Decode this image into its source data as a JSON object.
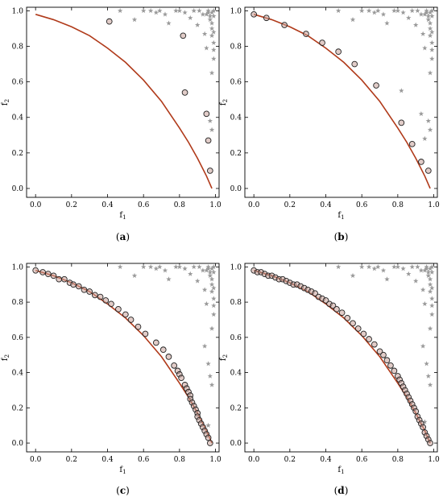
{
  "colors": {
    "front_curve": "#b03a1a",
    "solution_fill": "#c9a39a",
    "solution_stroke": "#222222",
    "population": "#9a9a9a",
    "axes": "#000000"
  },
  "chart_data": [
    {
      "type": "scatter",
      "panel_label": "(a)",
      "xlabel": "f1",
      "ylabel": "f2",
      "xlim": [
        -0.05,
        1.02
      ],
      "ylim": [
        -0.05,
        1.02
      ],
      "xticks": [
        "0.0",
        "0.2",
        "0.4",
        "0.6",
        "0.8",
        "1.0"
      ],
      "yticks": [
        "0.0",
        "0.2",
        "0.4",
        "0.6",
        "0.8",
        "1.0"
      ],
      "grid": false,
      "front_points": [
        [
          0.0,
          0.98
        ],
        [
          0.1,
          0.95
        ],
        [
          0.2,
          0.91
        ],
        [
          0.3,
          0.86
        ],
        [
          0.4,
          0.79
        ],
        [
          0.5,
          0.71
        ],
        [
          0.6,
          0.61
        ],
        [
          0.7,
          0.49
        ],
        [
          0.8,
          0.34
        ],
        [
          0.85,
          0.26
        ],
        [
          0.9,
          0.17
        ],
        [
          0.95,
          0.07
        ],
        [
          0.98,
          0.0
        ]
      ],
      "solutions": [
        [
          0.41,
          0.94
        ],
        [
          0.82,
          0.86
        ],
        [
          0.83,
          0.54
        ],
        [
          0.95,
          0.42
        ],
        [
          0.96,
          0.27
        ],
        [
          0.97,
          0.1
        ]
      ],
      "population": [
        [
          0.47,
          1.0
        ],
        [
          0.55,
          0.95
        ],
        [
          0.6,
          1.0
        ],
        [
          0.64,
          1.0
        ],
        [
          0.67,
          0.99
        ],
        [
          0.69,
          1.0
        ],
        [
          0.72,
          0.98
        ],
        [
          0.74,
          0.93
        ],
        [
          0.78,
          1.0
        ],
        [
          0.8,
          1.0
        ],
        [
          0.83,
          0.99
        ],
        [
          0.86,
          0.96
        ],
        [
          0.88,
          1.0
        ],
        [
          0.9,
          0.92
        ],
        [
          0.91,
          1.0
        ],
        [
          0.93,
          0.98
        ],
        [
          0.94,
          0.87
        ],
        [
          0.95,
          0.79
        ],
        [
          0.96,
          1.0
        ],
        [
          0.97,
          0.97
        ],
        [
          0.97,
          0.95
        ],
        [
          0.98,
          0.93
        ],
        [
          0.98,
          0.9
        ],
        [
          0.98,
          0.86
        ],
        [
          0.99,
          0.82
        ],
        [
          0.99,
          0.78
        ],
        [
          0.99,
          0.73
        ],
        [
          0.98,
          0.65
        ],
        [
          0.97,
          0.38
        ],
        [
          0.98,
          0.33
        ],
        [
          0.99,
          1.0
        ],
        [
          0.98,
          0.99
        ],
        [
          0.99,
          0.97
        ],
        [
          0.96,
          0.99
        ],
        [
          0.95,
          0.98
        ],
        [
          0.99,
          0.88
        ]
      ]
    },
    {
      "type": "scatter",
      "panel_label": "(b)",
      "xlabel": "f1",
      "ylabel": "f2",
      "xlim": [
        -0.05,
        1.02
      ],
      "ylim": [
        -0.05,
        1.02
      ],
      "xticks": [
        "0.0",
        "0.2",
        "0.4",
        "0.6",
        "0.8",
        "1.0"
      ],
      "yticks": [
        "0.0",
        "0.2",
        "0.4",
        "0.6",
        "0.8",
        "1.0"
      ],
      "grid": false,
      "front_points": [
        [
          0.0,
          0.98
        ],
        [
          0.1,
          0.95
        ],
        [
          0.2,
          0.91
        ],
        [
          0.3,
          0.86
        ],
        [
          0.4,
          0.79
        ],
        [
          0.5,
          0.71
        ],
        [
          0.6,
          0.61
        ],
        [
          0.7,
          0.49
        ],
        [
          0.8,
          0.34
        ],
        [
          0.85,
          0.26
        ],
        [
          0.9,
          0.17
        ],
        [
          0.95,
          0.07
        ],
        [
          0.98,
          0.0
        ]
      ],
      "solutions": [
        [
          0.0,
          0.98
        ],
        [
          0.07,
          0.96
        ],
        [
          0.17,
          0.92
        ],
        [
          0.29,
          0.87
        ],
        [
          0.38,
          0.82
        ],
        [
          0.47,
          0.77
        ],
        [
          0.56,
          0.7
        ],
        [
          0.68,
          0.58
        ],
        [
          0.82,
          0.37
        ],
        [
          0.88,
          0.25
        ],
        [
          0.93,
          0.15
        ],
        [
          0.97,
          0.1
        ]
      ],
      "population": [
        [
          0.47,
          1.0
        ],
        [
          0.55,
          0.95
        ],
        [
          0.6,
          1.0
        ],
        [
          0.64,
          1.0
        ],
        [
          0.67,
          0.99
        ],
        [
          0.69,
          1.0
        ],
        [
          0.72,
          0.98
        ],
        [
          0.74,
          0.93
        ],
        [
          0.78,
          1.0
        ],
        [
          0.8,
          1.0
        ],
        [
          0.83,
          0.99
        ],
        [
          0.86,
          0.96
        ],
        [
          0.88,
          1.0
        ],
        [
          0.9,
          0.92
        ],
        [
          0.91,
          1.0
        ],
        [
          0.93,
          0.98
        ],
        [
          0.94,
          0.87
        ],
        [
          0.95,
          0.79
        ],
        [
          0.96,
          1.0
        ],
        [
          0.97,
          0.97
        ],
        [
          0.97,
          0.95
        ],
        [
          0.98,
          0.93
        ],
        [
          0.98,
          0.9
        ],
        [
          0.98,
          0.86
        ],
        [
          0.99,
          0.82
        ],
        [
          0.99,
          0.78
        ],
        [
          0.99,
          0.73
        ],
        [
          0.98,
          0.65
        ],
        [
          0.97,
          0.38
        ],
        [
          0.98,
          0.33
        ],
        [
          0.99,
          1.0
        ],
        [
          0.98,
          0.99
        ],
        [
          0.99,
          0.97
        ],
        [
          0.96,
          0.99
        ],
        [
          0.95,
          0.98
        ],
        [
          0.99,
          0.88
        ],
        [
          0.82,
          0.55
        ],
        [
          0.93,
          0.42
        ],
        [
          0.95,
          0.28
        ]
      ]
    },
    {
      "type": "scatter",
      "panel_label": "(c)",
      "xlabel": "f1",
      "ylabel": "f2",
      "xlim": [
        -0.05,
        1.02
      ],
      "ylim": [
        -0.05,
        1.02
      ],
      "xticks": [
        "0.0",
        "0.2",
        "0.4",
        "0.6",
        "0.8",
        "1.0"
      ],
      "yticks": [
        "0.0",
        "0.2",
        "0.4",
        "0.6",
        "0.8",
        "1.0"
      ],
      "grid": false,
      "front_points": [
        [
          0.0,
          0.98
        ],
        [
          0.1,
          0.95
        ],
        [
          0.2,
          0.91
        ],
        [
          0.3,
          0.86
        ],
        [
          0.4,
          0.79
        ],
        [
          0.5,
          0.71
        ],
        [
          0.6,
          0.61
        ],
        [
          0.7,
          0.49
        ],
        [
          0.8,
          0.34
        ],
        [
          0.85,
          0.26
        ],
        [
          0.9,
          0.17
        ],
        [
          0.95,
          0.07
        ],
        [
          0.98,
          0.0
        ]
      ],
      "solutions": [
        [
          0.0,
          0.98
        ],
        [
          0.04,
          0.97
        ],
        [
          0.07,
          0.96
        ],
        [
          0.1,
          0.95
        ],
        [
          0.13,
          0.93
        ],
        [
          0.16,
          0.93
        ],
        [
          0.19,
          0.91
        ],
        [
          0.21,
          0.9
        ],
        [
          0.24,
          0.89
        ],
        [
          0.27,
          0.87
        ],
        [
          0.3,
          0.86
        ],
        [
          0.33,
          0.84
        ],
        [
          0.36,
          0.83
        ],
        [
          0.39,
          0.81
        ],
        [
          0.42,
          0.79
        ],
        [
          0.46,
          0.76
        ],
        [
          0.5,
          0.73
        ],
        [
          0.53,
          0.7
        ],
        [
          0.57,
          0.66
        ],
        [
          0.61,
          0.62
        ],
        [
          0.67,
          0.57
        ],
        [
          0.71,
          0.53
        ],
        [
          0.74,
          0.49
        ],
        [
          0.77,
          0.44
        ],
        [
          0.79,
          0.41
        ],
        [
          0.8,
          0.39
        ],
        [
          0.81,
          0.37
        ],
        [
          0.83,
          0.33
        ],
        [
          0.84,
          0.31
        ],
        [
          0.85,
          0.29
        ],
        [
          0.86,
          0.27
        ],
        [
          0.86,
          0.25
        ],
        [
          0.87,
          0.23
        ],
        [
          0.88,
          0.21
        ],
        [
          0.89,
          0.19
        ],
        [
          0.9,
          0.17
        ],
        [
          0.9,
          0.15
        ],
        [
          0.91,
          0.13
        ],
        [
          0.92,
          0.11
        ],
        [
          0.93,
          0.09
        ],
        [
          0.94,
          0.07
        ],
        [
          0.95,
          0.05
        ],
        [
          0.96,
          0.03
        ],
        [
          0.97,
          0.0
        ]
      ],
      "population": [
        [
          0.47,
          1.0
        ],
        [
          0.55,
          0.95
        ],
        [
          0.6,
          1.0
        ],
        [
          0.64,
          1.0
        ],
        [
          0.67,
          0.99
        ],
        [
          0.69,
          1.0
        ],
        [
          0.72,
          0.98
        ],
        [
          0.74,
          0.93
        ],
        [
          0.78,
          1.0
        ],
        [
          0.8,
          1.0
        ],
        [
          0.83,
          0.99
        ],
        [
          0.86,
          0.96
        ],
        [
          0.88,
          1.0
        ],
        [
          0.9,
          0.92
        ],
        [
          0.91,
          1.0
        ],
        [
          0.93,
          0.98
        ],
        [
          0.94,
          0.87
        ],
        [
          0.95,
          0.79
        ],
        [
          0.96,
          1.0
        ],
        [
          0.97,
          0.97
        ],
        [
          0.97,
          0.95
        ],
        [
          0.98,
          0.93
        ],
        [
          0.98,
          0.9
        ],
        [
          0.98,
          0.86
        ],
        [
          0.99,
          0.82
        ],
        [
          0.99,
          0.78
        ],
        [
          0.99,
          0.73
        ],
        [
          0.98,
          0.65
        ],
        [
          0.97,
          0.38
        ],
        [
          0.98,
          0.33
        ],
        [
          0.99,
          1.0
        ],
        [
          0.98,
          0.99
        ],
        [
          0.99,
          0.97
        ],
        [
          0.96,
          0.99
        ],
        [
          0.95,
          0.98
        ],
        [
          0.99,
          0.88
        ],
        [
          0.94,
          0.55
        ],
        [
          0.96,
          0.45
        ],
        [
          0.96,
          0.1
        ]
      ]
    },
    {
      "type": "scatter",
      "panel_label": "(d)",
      "xlabel": "f1",
      "ylabel": "f2",
      "xlim": [
        -0.05,
        1.02
      ],
      "ylim": [
        -0.05,
        1.02
      ],
      "xticks": [
        "0.0",
        "0.2",
        "0.4",
        "0.6",
        "0.8",
        "1.0"
      ],
      "yticks": [
        "0.0",
        "0.2",
        "0.4",
        "0.6",
        "0.8",
        "1.0"
      ],
      "grid": false,
      "front_points": [
        [
          0.0,
          0.98
        ],
        [
          0.1,
          0.95
        ],
        [
          0.2,
          0.91
        ],
        [
          0.3,
          0.86
        ],
        [
          0.4,
          0.79
        ],
        [
          0.5,
          0.71
        ],
        [
          0.6,
          0.61
        ],
        [
          0.7,
          0.49
        ],
        [
          0.8,
          0.34
        ],
        [
          0.85,
          0.26
        ],
        [
          0.9,
          0.17
        ],
        [
          0.95,
          0.07
        ],
        [
          0.98,
          0.0
        ]
      ],
      "solutions": [
        [
          0.0,
          0.98
        ],
        [
          0.02,
          0.97
        ],
        [
          0.04,
          0.97
        ],
        [
          0.06,
          0.96
        ],
        [
          0.08,
          0.95
        ],
        [
          0.1,
          0.95
        ],
        [
          0.12,
          0.94
        ],
        [
          0.14,
          0.93
        ],
        [
          0.16,
          0.93
        ],
        [
          0.18,
          0.92
        ],
        [
          0.2,
          0.91
        ],
        [
          0.22,
          0.9
        ],
        [
          0.24,
          0.9
        ],
        [
          0.26,
          0.89
        ],
        [
          0.28,
          0.88
        ],
        [
          0.3,
          0.87
        ],
        [
          0.32,
          0.86
        ],
        [
          0.34,
          0.85
        ],
        [
          0.36,
          0.83
        ],
        [
          0.38,
          0.82
        ],
        [
          0.4,
          0.81
        ],
        [
          0.42,
          0.79
        ],
        [
          0.44,
          0.78
        ],
        [
          0.46,
          0.76
        ],
        [
          0.49,
          0.74
        ],
        [
          0.52,
          0.71
        ],
        [
          0.55,
          0.68
        ],
        [
          0.58,
          0.65
        ],
        [
          0.61,
          0.62
        ],
        [
          0.64,
          0.59
        ],
        [
          0.67,
          0.56
        ],
        [
          0.7,
          0.52
        ],
        [
          0.72,
          0.5
        ],
        [
          0.74,
          0.47
        ],
        [
          0.76,
          0.44
        ],
        [
          0.78,
          0.41
        ],
        [
          0.8,
          0.38
        ],
        [
          0.81,
          0.36
        ],
        [
          0.82,
          0.34
        ],
        [
          0.83,
          0.32
        ],
        [
          0.84,
          0.3
        ],
        [
          0.85,
          0.28
        ],
        [
          0.86,
          0.26
        ],
        [
          0.87,
          0.24
        ],
        [
          0.88,
          0.22
        ],
        [
          0.89,
          0.2
        ],
        [
          0.9,
          0.18
        ],
        [
          0.91,
          0.15
        ],
        [
          0.92,
          0.13
        ],
        [
          0.93,
          0.11
        ],
        [
          0.94,
          0.09
        ],
        [
          0.95,
          0.06
        ],
        [
          0.96,
          0.04
        ],
        [
          0.97,
          0.02
        ],
        [
          0.98,
          0.0
        ]
      ],
      "population": [
        [
          0.47,
          1.0
        ],
        [
          0.55,
          0.95
        ],
        [
          0.6,
          1.0
        ],
        [
          0.64,
          1.0
        ],
        [
          0.67,
          0.99
        ],
        [
          0.69,
          1.0
        ],
        [
          0.72,
          0.98
        ],
        [
          0.74,
          0.93
        ],
        [
          0.78,
          1.0
        ],
        [
          0.8,
          1.0
        ],
        [
          0.83,
          0.99
        ],
        [
          0.86,
          0.96
        ],
        [
          0.88,
          1.0
        ],
        [
          0.9,
          0.92
        ],
        [
          0.91,
          1.0
        ],
        [
          0.93,
          0.98
        ],
        [
          0.94,
          0.87
        ],
        [
          0.95,
          0.79
        ],
        [
          0.96,
          1.0
        ],
        [
          0.97,
          0.97
        ],
        [
          0.97,
          0.95
        ],
        [
          0.98,
          0.93
        ],
        [
          0.98,
          0.9
        ],
        [
          0.98,
          0.86
        ],
        [
          0.99,
          0.82
        ],
        [
          0.99,
          0.78
        ],
        [
          0.99,
          0.73
        ],
        [
          0.98,
          0.65
        ],
        [
          0.97,
          0.38
        ],
        [
          0.98,
          0.33
        ],
        [
          0.99,
          1.0
        ],
        [
          0.98,
          0.99
        ],
        [
          0.99,
          0.97
        ],
        [
          0.96,
          0.99
        ],
        [
          0.95,
          0.98
        ],
        [
          0.99,
          0.88
        ],
        [
          0.94,
          0.55
        ],
        [
          0.96,
          0.45
        ],
        [
          0.95,
          0.12
        ]
      ]
    }
  ]
}
